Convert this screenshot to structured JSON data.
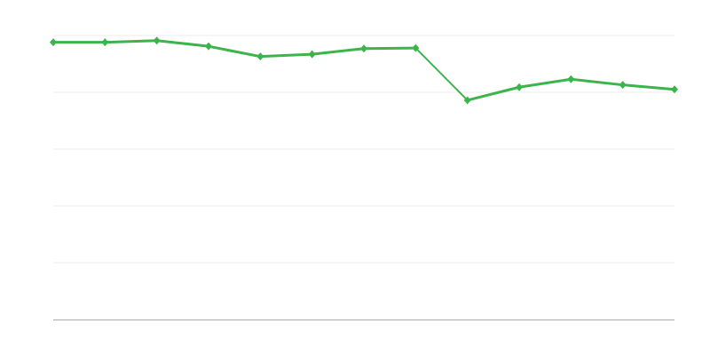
{
  "chart_data": {
    "type": "line",
    "title": "",
    "xlabel": "",
    "ylabel": "",
    "x": [
      0,
      1,
      2,
      3,
      4,
      5,
      6,
      7,
      8,
      9,
      10,
      11,
      12
    ],
    "series": [
      {
        "values": [
          4.88,
          4.88,
          4.91,
          4.81,
          4.63,
          4.67,
          4.77,
          4.78,
          3.86,
          4.09,
          4.23,
          4.13,
          4.05
        ],
        "color": "#3cb44b"
      }
    ],
    "ylim": [
      0,
      5
    ],
    "yticks": [
      0,
      1,
      2,
      3,
      4,
      5
    ],
    "grid": true,
    "gridColor": "#ebebeb",
    "axisColor": "#aaaaaa",
    "marker": "diamond"
  }
}
